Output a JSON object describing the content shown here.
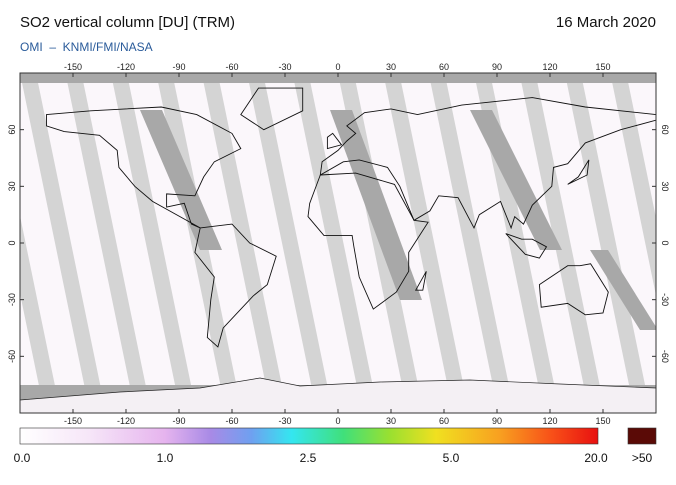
{
  "header": {
    "title": "SO2 vertical column [DU] (TRM)",
    "date": "16 March 2020",
    "source": "OMI  –  KNMI/FMI/NASA"
  },
  "map": {
    "lon_ticks": [
      -150,
      -120,
      -90,
      -60,
      -30,
      0,
      30,
      60,
      90,
      120,
      150
    ],
    "lat_ticks": [
      60,
      30,
      0,
      -30,
      -60
    ]
  },
  "colorbar": {
    "labels": [
      "0.0",
      "1.0",
      "2.5",
      "5.0",
      "20.0",
      ">50"
    ]
  }
}
